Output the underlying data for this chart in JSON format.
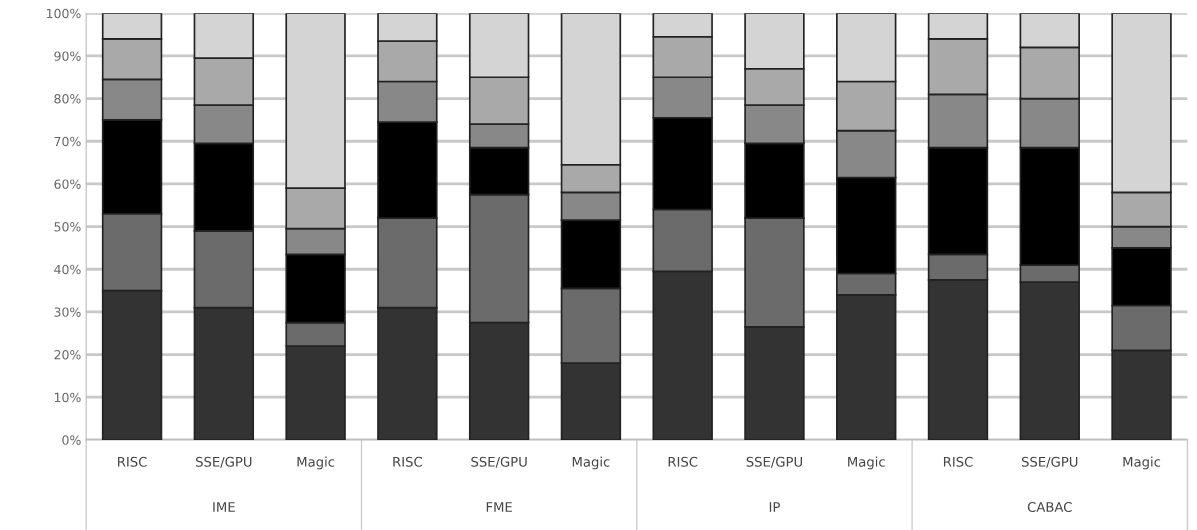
{
  "chart_data": {
    "type": "bar",
    "stacked": true,
    "categories": [
      "RISC",
      "SSE/GPU",
      "Magic",
      "RISC",
      "SSE/GPU",
      "Magic",
      "RISC",
      "SSE/GPU",
      "Magic",
      "RISC",
      "SSE/GPU",
      "Magic"
    ],
    "series": [
      {
        "color": "#333333",
        "values": [
          35,
          31,
          22,
          31,
          27.5,
          18,
          39.5,
          26.5,
          34,
          37.5,
          37,
          21
        ]
      },
      {
        "color": "#6b6b6b",
        "values": [
          18,
          18,
          5.5,
          21,
          30,
          17.5,
          14.5,
          25.5,
          5,
          6,
          4,
          10.5
        ]
      },
      {
        "color": "#000000",
        "values": [
          22,
          20.5,
          16,
          22.5,
          11,
          16,
          21.5,
          17.5,
          22.5,
          25,
          27.5,
          13.5
        ]
      },
      {
        "color": "#888888",
        "values": [
          9.5,
          9,
          6,
          9.5,
          5.5,
          6.5,
          9.5,
          9,
          11,
          12.5,
          11.5,
          5
        ]
      },
      {
        "color": "#a9a9a9",
        "values": [
          9.5,
          11,
          9.5,
          9.5,
          11,
          6.5,
          9.5,
          8.5,
          11.5,
          13,
          12,
          8
        ]
      },
      {
        "color": "#d4d4d4",
        "values": [
          6,
          10.5,
          41,
          6.5,
          15,
          35.5,
          5.5,
          13,
          16,
          6,
          8,
          42
        ]
      }
    ],
    "ylim": [
      0,
      100
    ],
    "yticks": [
      {
        "value": 0,
        "label": "0%"
      },
      {
        "value": 10,
        "label": "10%"
      },
      {
        "value": 20,
        "label": "20%"
      },
      {
        "value": 30,
        "label": "30%"
      },
      {
        "value": 40,
        "label": "40%"
      },
      {
        "value": 50,
        "label": "50%"
      },
      {
        "value": 60,
        "label": "60%"
      },
      {
        "value": 70,
        "label": "70%"
      },
      {
        "value": 80,
        "label": "80%"
      },
      {
        "value": 90,
        "label": "90%"
      },
      {
        "value": 100,
        "label": "100%"
      }
    ],
    "grid": "y",
    "annotations": [
      "IME",
      "FME",
      "IP",
      "CABAC"
    ]
  }
}
